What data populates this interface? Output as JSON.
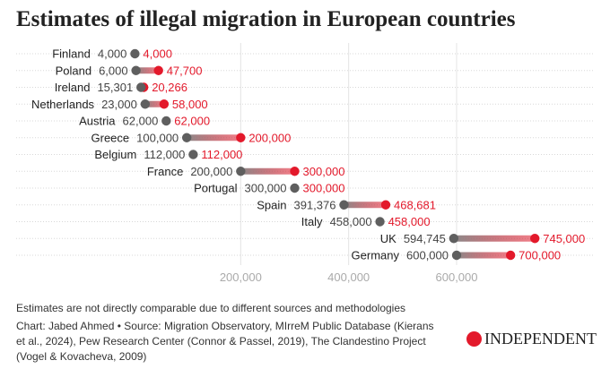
{
  "chart_data": {
    "type": "dumbbell",
    "title": "Estimates of illegal migration in European countries",
    "categories": [
      "Finland",
      "Poland",
      "Ireland",
      "Netherlands",
      "Austria",
      "Greece",
      "Belgium",
      "France",
      "Portugal",
      "Spain",
      "Italy",
      "UK",
      "Germany"
    ],
    "series": [
      {
        "values": [
          4000,
          6000,
          15301,
          23000,
          62000,
          100000,
          112000,
          200000,
          300000,
          391376,
          458000,
          594745,
          600000
        ],
        "labels": [
          "4,000",
          "6,000",
          "15,301",
          "23,000",
          "62,000",
          "100,000",
          "112,000",
          "200,000",
          "300,000",
          "391,376",
          "458,000",
          "594,745",
          "600,000"
        ]
      },
      {
        "values": [
          4000,
          47700,
          20266,
          58000,
          62000,
          200000,
          112000,
          300000,
          300000,
          468681,
          458000,
          745000,
          700000
        ],
        "labels": [
          "4,000",
          "47,700",
          "20,266",
          "58,000",
          "62,000",
          "200,000",
          "112,000",
          "300,000",
          "300,000",
          "468,681",
          "458,000",
          "745,000",
          "700,000"
        ]
      }
    ],
    "xticks": [
      200000,
      400000,
      600000
    ],
    "xtick_labels": [
      "200,000",
      "400,000",
      "600,000"
    ],
    "xlim": [
      0,
      800000
    ],
    "grid": true,
    "colors": {
      "low": "#5f5f5f",
      "high": "#e3192b",
      "text": "#222222",
      "value_low": "#444444",
      "tick": "#aaaaaa"
    }
  },
  "footer": {
    "note": "Estimates are not directly comparable due to different sources and methodologies",
    "credit": "Chart: Jabed Ahmed • Source: Migration Observatory, MIrreM Public Database (Kierans et al., 2024), Pew Research Center (Connor & Passel, 2019), The Clandestino Project (Vogel & Kovacheva, 2009)",
    "logo": "INDEPENDENT"
  }
}
